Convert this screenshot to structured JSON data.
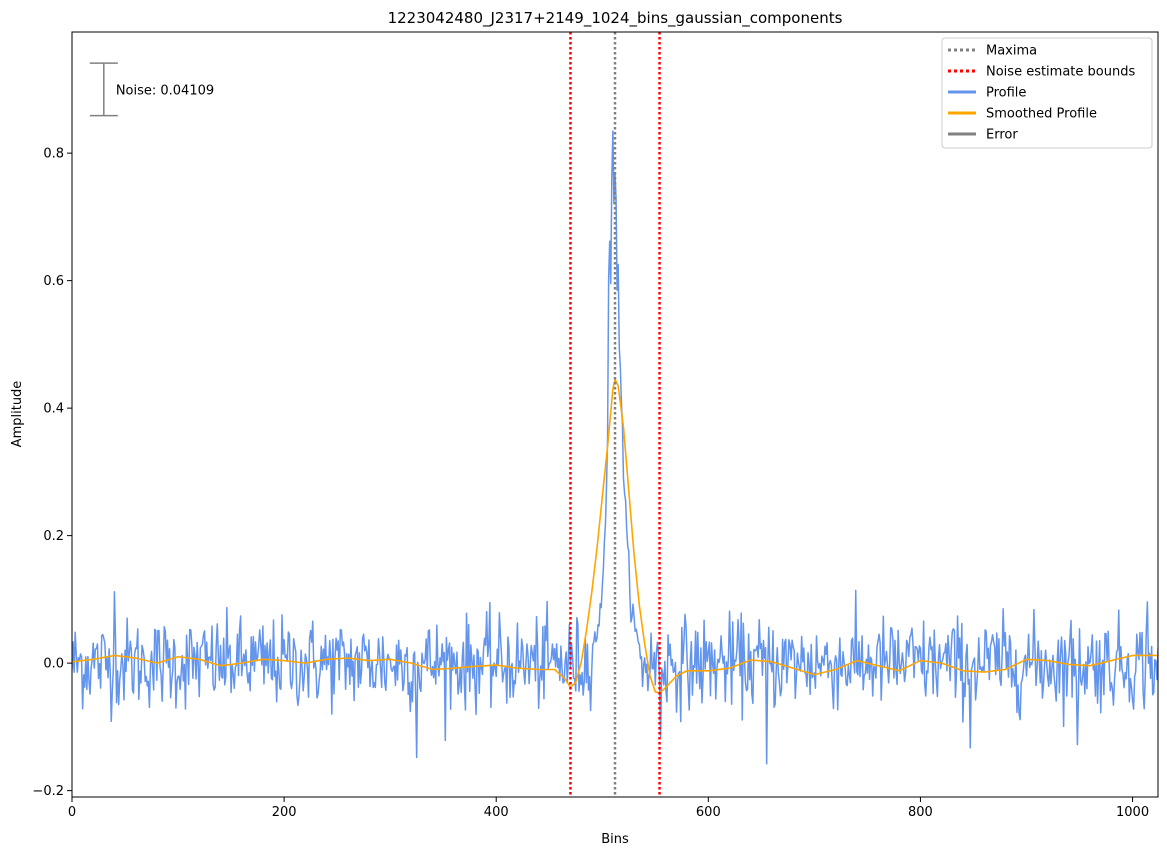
{
  "chart_data": {
    "type": "line",
    "title": "1223042480_J2317+2149_1024_bins_gaussian_components",
    "xlabel": "Bins",
    "ylabel": "Amplitude",
    "xlim": [
      0,
      1024
    ],
    "ylim": [
      -0.21,
      0.99
    ],
    "x_ticks": [
      0,
      200,
      400,
      600,
      800,
      1000
    ],
    "x_tick_labels": [
      "0",
      "200",
      "400",
      "600",
      "800",
      "1000"
    ],
    "y_ticks": [
      -0.2,
      0.0,
      0.2,
      0.4,
      0.6,
      0.8
    ],
    "y_tick_labels": [
      "−0.2",
      "0.0",
      "0.2",
      "0.4",
      "0.6",
      "0.8"
    ],
    "grid": false,
    "legend": {
      "placement": "top-right",
      "entries": [
        {
          "label": "Maxima",
          "color": "#808080",
          "style": "dotted"
        },
        {
          "label": "Noise estimate bounds",
          "color": "#ff0000",
          "style": "dotted"
        },
        {
          "label": "Profile",
          "color": "#6495ed",
          "style": "solid"
        },
        {
          "label": "Smoothed Profile",
          "color": "#ffa500",
          "style": "solid"
        },
        {
          "label": "Error",
          "color": "#808080",
          "style": "solid"
        }
      ]
    },
    "maxima": [
      512
    ],
    "noise_bounds": [
      470,
      554
    ],
    "noise_annotation": {
      "label": "Noise: 0.04109",
      "value": 0.04109,
      "center_y": 0.9,
      "x": 30
    },
    "profile": {
      "name": "Profile",
      "color": "#6495ed",
      "noise_sigma": 0.041,
      "peak_points": [
        [
          490,
          0.02
        ],
        [
          495,
          0.05
        ],
        [
          500,
          0.1
        ],
        [
          503,
          0.23
        ],
        [
          505,
          0.36
        ],
        [
          506,
          0.61
        ],
        [
          507,
          0.66
        ],
        [
          508,
          0.6
        ],
        [
          509,
          0.78
        ],
        [
          510,
          0.84
        ],
        [
          511,
          0.7
        ],
        [
          512,
          0.77
        ],
        [
          513,
          0.71
        ],
        [
          514,
          0.58
        ],
        [
          515,
          0.63
        ],
        [
          516,
          0.52
        ],
        [
          518,
          0.42
        ],
        [
          520,
          0.3
        ],
        [
          523,
          0.2
        ],
        [
          526,
          0.12
        ],
        [
          530,
          0.06
        ],
        [
          535,
          0.02
        ]
      ],
      "notable_points": [
        [
          325,
          -0.148
        ],
        [
          655,
          -0.158
        ],
        [
          555,
          -0.115
        ],
        [
          847,
          -0.133
        ],
        [
          948,
          -0.128
        ],
        [
          40,
          0.112
        ],
        [
          1014,
          0.096
        ]
      ]
    },
    "smoothed_profile": {
      "name": "Smoothed Profile",
      "color": "#ffa500",
      "x": [
        0,
        20,
        40,
        60,
        80,
        100,
        120,
        140,
        160,
        180,
        200,
        220,
        240,
        260,
        280,
        300,
        320,
        340,
        360,
        380,
        400,
        420,
        440,
        455,
        465,
        470,
        475,
        480,
        485,
        490,
        495,
        500,
        505,
        510,
        512,
        515,
        520,
        525,
        530,
        535,
        540,
        545,
        550,
        554,
        560,
        570,
        580,
        600,
        620,
        640,
        660,
        680,
        700,
        720,
        740,
        760,
        780,
        800,
        820,
        840,
        860,
        880,
        900,
        920,
        940,
        960,
        980,
        1000,
        1024
      ],
      "y": [
        0.002,
        0.006,
        0.012,
        0.008,
        0.0,
        0.01,
        0.006,
        -0.004,
        0.0,
        0.006,
        0.004,
        0.0,
        0.006,
        0.008,
        0.004,
        0.006,
        0.0,
        -0.01,
        -0.008,
        -0.005,
        -0.003,
        -0.008,
        -0.01,
        -0.01,
        -0.025,
        -0.038,
        -0.03,
        0.0,
        0.05,
        0.11,
        0.18,
        0.26,
        0.34,
        0.43,
        0.445,
        0.435,
        0.37,
        0.27,
        0.17,
        0.09,
        0.03,
        -0.02,
        -0.045,
        -0.047,
        -0.038,
        -0.02,
        -0.012,
        -0.012,
        -0.008,
        0.005,
        0.002,
        -0.008,
        -0.018,
        -0.01,
        0.004,
        -0.004,
        -0.012,
        0.004,
        0.0,
        -0.012,
        -0.014,
        -0.01,
        0.006,
        0.004,
        -0.002,
        -0.004,
        0.004,
        0.012,
        0.012
      ]
    }
  }
}
